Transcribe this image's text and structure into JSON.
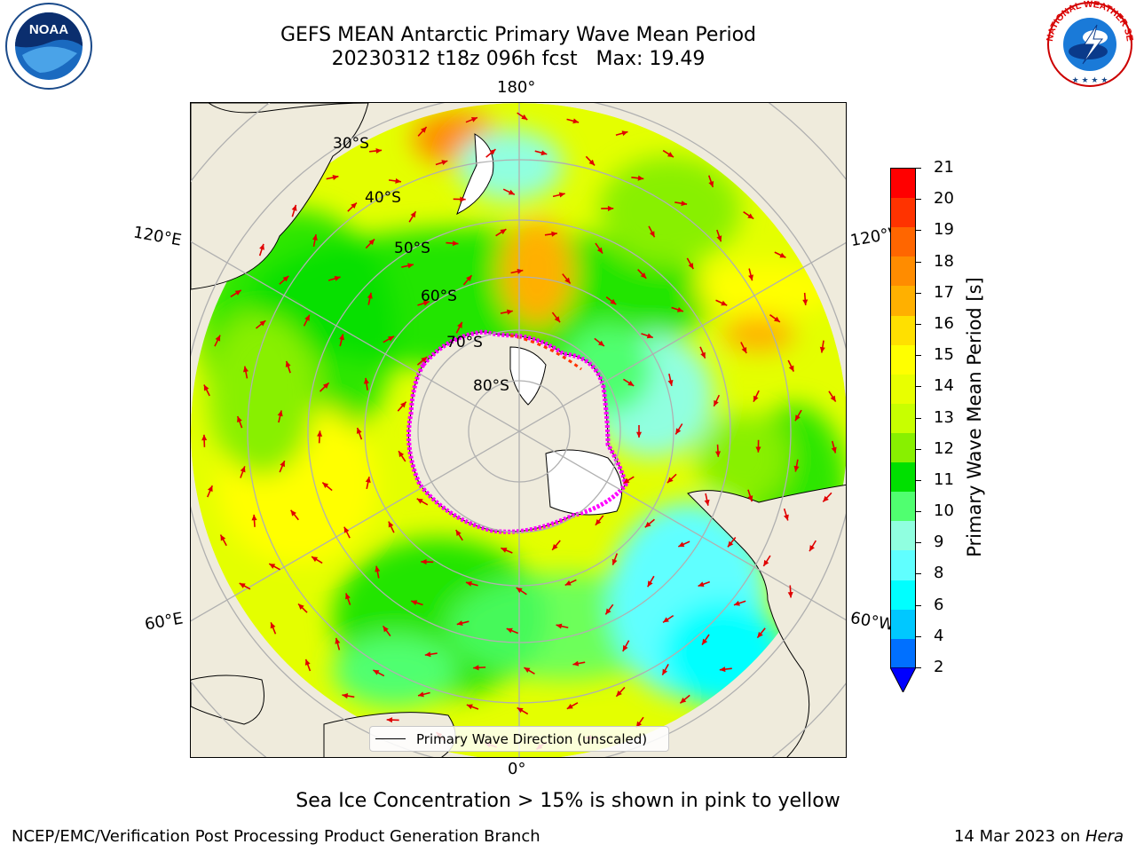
{
  "title": {
    "line1": "GEFS MEAN Antarctic Primary Wave Mean Period",
    "line2": "20230312 t18z 096h fcst   Max: 19.49"
  },
  "logos": {
    "left": {
      "icon": "noaa-logo",
      "text": "NOAA"
    },
    "right": {
      "icon": "nws-logo",
      "text": "NATIONAL WEATHER SERVICE"
    }
  },
  "map": {
    "projection": "south-polar-stereographic",
    "longitude_labels": {
      "top": "180°",
      "bottom": "0°",
      "left_upper": "120°E",
      "left_lower": "60°E",
      "right_upper": "120°W",
      "right_lower": "60°W"
    },
    "latitude_labels": [
      "30°S",
      "40°S",
      "50°S",
      "60°S",
      "70°S",
      "80°S"
    ],
    "legend": "Primary Wave Direction (unscaled)",
    "arrow_color": "#e00000",
    "sea_ice_color": "#ff00ff",
    "land_color": "#efebdc"
  },
  "colorbar": {
    "label": "Primary Wave Mean Period [s]",
    "ticks": [
      "21",
      "20",
      "19",
      "18",
      "17",
      "16",
      "15",
      "14",
      "13",
      "12",
      "11",
      "10",
      "9",
      "8",
      "6",
      "4",
      "2"
    ],
    "colors_top_to_bottom": [
      "#ff0000",
      "#ff3300",
      "#ff6600",
      "#ff8c00",
      "#ffb000",
      "#ffe000",
      "#ffff00",
      "#e8ff00",
      "#c8ff00",
      "#88f000",
      "#00e000",
      "#50ff70",
      "#90ffe0",
      "#60ffff",
      "#00ffff",
      "#00c8ff",
      "#0070ff"
    ],
    "under_color": "#0000ff"
  },
  "caption": "Sea Ice Concentration > 15% is shown in pink to yellow",
  "footer": {
    "left": "NCEP/EMC/Verification Post Processing Product Generation Branch",
    "right_date": "14 Mar 2023 on",
    "right_host": "Hera"
  }
}
